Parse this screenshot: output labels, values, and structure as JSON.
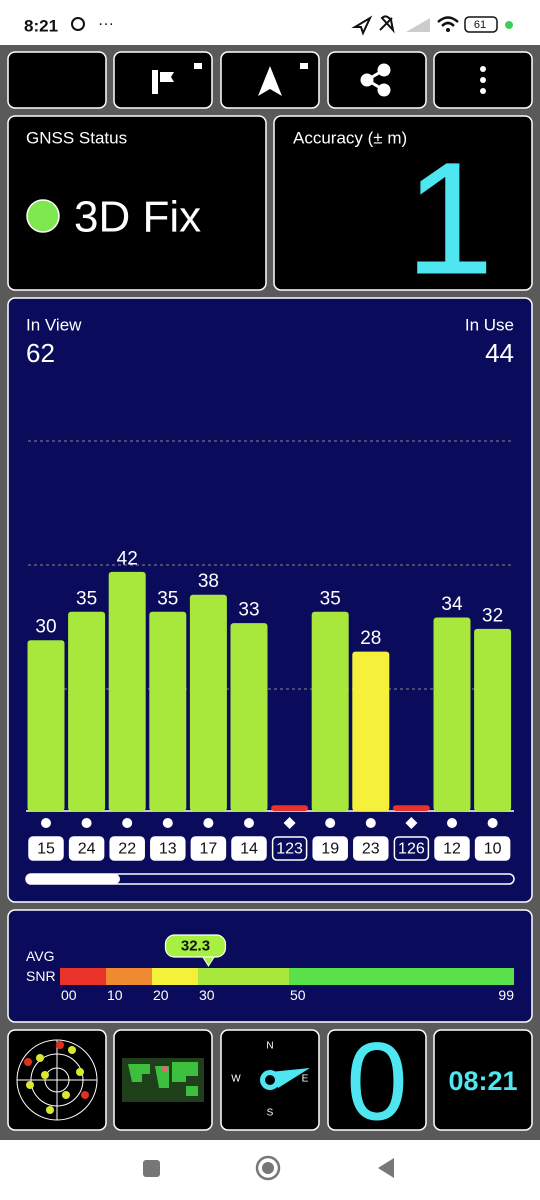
{
  "status_bar": {
    "time": "8:21",
    "battery": "61"
  },
  "gnss_status": {
    "label": "GNSS Status",
    "fix": "3D Fix"
  },
  "accuracy": {
    "label": "Accuracy (± m)",
    "value": "1"
  },
  "chart_data": {
    "type": "bar",
    "in_view_label": "In View",
    "in_view": 62,
    "in_use_label": "In Use",
    "in_use": 44,
    "categories": [
      "15",
      "24",
      "22",
      "13",
      "17",
      "14",
      "123",
      "19",
      "23",
      "126",
      "12",
      "10"
    ],
    "values": [
      30,
      35,
      42,
      35,
      38,
      33,
      1,
      35,
      28,
      1,
      34,
      32
    ],
    "markers": [
      "dot",
      "dot",
      "dot",
      "dot",
      "dot",
      "dot",
      "diamond",
      "dot",
      "dot",
      "diamond",
      "dot",
      "dot"
    ],
    "ylim": [
      0,
      65
    ]
  },
  "snr": {
    "avg_label": "AVG",
    "snr_label": "SNR",
    "average": 32.3,
    "ticks": [
      {
        "value": 0,
        "label": "00"
      },
      10,
      20,
      30,
      50,
      99
    ]
  },
  "tiles": {
    "compass": {
      "n": "N",
      "e": "E",
      "s": "S",
      "w": "W"
    },
    "speed": "0",
    "clock": "08:21"
  }
}
